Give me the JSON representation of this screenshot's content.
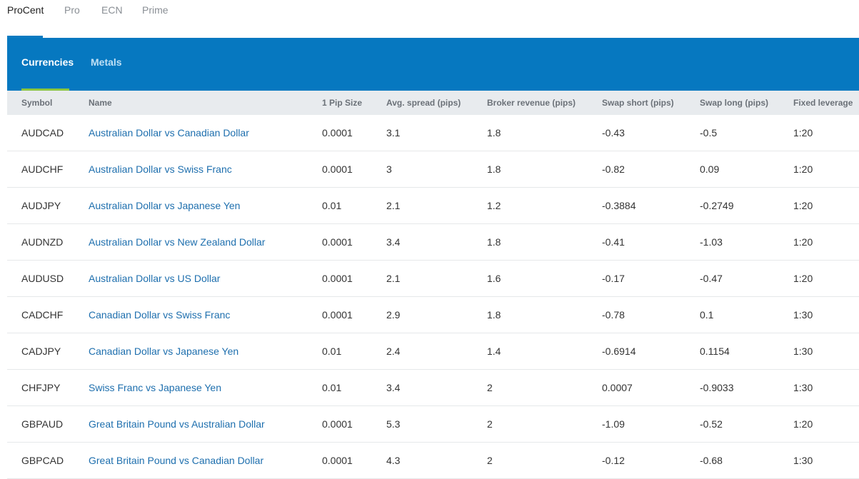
{
  "account_tabs": [
    "ProCent",
    "Pro",
    "ECN",
    "Prime"
  ],
  "asset_tabs": [
    "Currencies",
    "Metals"
  ],
  "columns": {
    "symbol": "Symbol",
    "name": "Name",
    "pip_size": "1 Pip Size",
    "avg_spread": "Avg. spread (pips)",
    "broker_revenue": "Broker revenue (pips)",
    "swap_short": "Swap short (pips)",
    "swap_long": "Swap long (pips)",
    "fixed_leverage": "Fixed leverage"
  },
  "rows": [
    {
      "symbol": "AUDCAD",
      "name": "Australian Dollar vs Canadian Dollar",
      "pip_size": "0.0001",
      "avg_spread": "3.1",
      "broker_revenue": "1.8",
      "swap_short": "-0.43",
      "swap_long": "-0.5",
      "fixed_leverage": "1:20"
    },
    {
      "symbol": "AUDCHF",
      "name": "Australian Dollar vs Swiss Franc",
      "pip_size": "0.0001",
      "avg_spread": "3",
      "broker_revenue": "1.8",
      "swap_short": "-0.82",
      "swap_long": "0.09",
      "fixed_leverage": "1:20"
    },
    {
      "symbol": "AUDJPY",
      "name": "Australian Dollar vs Japanese Yen",
      "pip_size": "0.01",
      "avg_spread": "2.1",
      "broker_revenue": "1.2",
      "swap_short": "-0.3884",
      "swap_long": "-0.2749",
      "fixed_leverage": "1:20"
    },
    {
      "symbol": "AUDNZD",
      "name": "Australian Dollar vs New Zealand Dollar",
      "pip_size": "0.0001",
      "avg_spread": "3.4",
      "broker_revenue": "1.8",
      "swap_short": "-0.41",
      "swap_long": "-1.03",
      "fixed_leverage": "1:20"
    },
    {
      "symbol": "AUDUSD",
      "name": "Australian Dollar vs US Dollar",
      "pip_size": "0.0001",
      "avg_spread": "2.1",
      "broker_revenue": "1.6",
      "swap_short": "-0.17",
      "swap_long": "-0.47",
      "fixed_leverage": "1:20"
    },
    {
      "symbol": "CADCHF",
      "name": "Canadian Dollar vs Swiss Franc",
      "pip_size": "0.0001",
      "avg_spread": "2.9",
      "broker_revenue": "1.8",
      "swap_short": "-0.78",
      "swap_long": "0.1",
      "fixed_leverage": "1:30"
    },
    {
      "symbol": "CADJPY",
      "name": "Canadian Dollar vs Japanese Yen",
      "pip_size": "0.01",
      "avg_spread": "2.4",
      "broker_revenue": "1.4",
      "swap_short": "-0.6914",
      "swap_long": "0.1154",
      "fixed_leverage": "1:30"
    },
    {
      "symbol": "CHFJPY",
      "name": "Swiss Franc vs Japanese Yen",
      "pip_size": "0.01",
      "avg_spread": "3.4",
      "broker_revenue": "2",
      "swap_short": "0.0007",
      "swap_long": "-0.9033",
      "fixed_leverage": "1:30"
    },
    {
      "symbol": "GBPAUD",
      "name": "Great Britain Pound vs Australian Dollar",
      "pip_size": "0.0001",
      "avg_spread": "5.3",
      "broker_revenue": "2",
      "swap_short": "-1.09",
      "swap_long": "-0.52",
      "fixed_leverage": "1:20"
    },
    {
      "symbol": "GBPCAD",
      "name": "Great Britain Pound vs Canadian Dollar",
      "pip_size": "0.0001",
      "avg_spread": "4.3",
      "broker_revenue": "2",
      "swap_short": "-0.12",
      "swap_long": "-0.68",
      "fixed_leverage": "1:30"
    }
  ]
}
